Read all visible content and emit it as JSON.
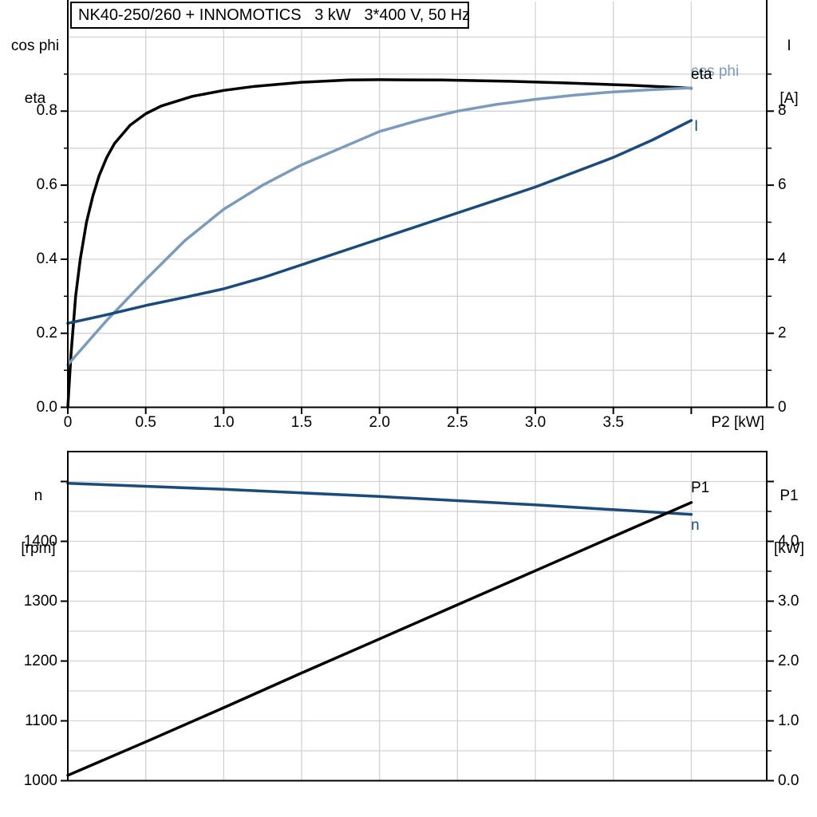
{
  "title": "NK40-250/260 + INNOMOTICS   3 kW   3*400 V, 50 Hz",
  "colors": {
    "black": "#000000",
    "light_blue": "#7a9bbd",
    "dark_blue": "#1a4b7c",
    "grid": "#d2d2d2",
    "axis": "#000000"
  },
  "top_chart": {
    "left_axis_title_line1": "cos phi",
    "left_axis_title_line2": "eta",
    "right_axis_title_line1": "I",
    "right_axis_title_line2": "[A]",
    "x_axis_label": "P2 [kW]",
    "left_ticks": [
      "0.0",
      "0.2",
      "0.4",
      "0.6",
      "0.8"
    ],
    "right_ticks": [
      "0",
      "2",
      "4",
      "6",
      "8"
    ],
    "x_ticks": [
      "0",
      "0.5",
      "1.0",
      "1.5",
      "2.0",
      "2.5",
      "3.0",
      "3.5"
    ],
    "curve_labels": {
      "cos_phi": "cos phi",
      "eta": "eta",
      "current": "I"
    }
  },
  "bottom_chart": {
    "left_axis_title_line1": "n",
    "left_axis_title_line2": "[rpm]",
    "right_axis_title_line1": "P1",
    "right_axis_title_line2": "[kW]",
    "left_ticks": [
      "1000",
      "1100",
      "1200",
      "1300",
      "1400"
    ],
    "right_ticks": [
      "0.0",
      "1.0",
      "2.0",
      "3.0",
      "4.0"
    ],
    "curve_labels": {
      "p1": "P1",
      "n": "n"
    }
  },
  "chart_data": [
    {
      "type": "line",
      "title": "NK40-250/260 + INNOMOTICS   3 kW   3*400 V, 50 Hz",
      "xlabel": "P2 [kW]",
      "ylabel_left": "cos phi / eta",
      "ylabel_right": "I [A]",
      "xlim": [
        0,
        4.48
      ],
      "ylim_left": [
        0,
        1.1
      ],
      "ylim_right": [
        0,
        11
      ],
      "grid": true,
      "legend_position": "right-inline",
      "series": [
        {
          "name": "cos phi",
          "axis": "left",
          "color_key": "black",
          "x": [
            0,
            0.02,
            0.05,
            0.08,
            0.12,
            0.16,
            0.2,
            0.25,
            0.3,
            0.4,
            0.5,
            0.6,
            0.8,
            1.0,
            1.2,
            1.5,
            1.8,
            2.0,
            2.4,
            2.8,
            3.2,
            3.6,
            4.0
          ],
          "y": [
            0,
            0.14,
            0.3,
            0.4,
            0.5,
            0.57,
            0.625,
            0.675,
            0.713,
            0.762,
            0.793,
            0.814,
            0.84,
            0.856,
            0.867,
            0.878,
            0.884,
            0.885,
            0.884,
            0.881,
            0.876,
            0.87,
            0.862
          ]
        },
        {
          "name": "eta",
          "axis": "left",
          "color_key": "light_blue",
          "x": [
            0,
            0.25,
            0.5,
            0.75,
            1.0,
            1.25,
            1.5,
            1.75,
            2.0,
            2.25,
            2.5,
            2.75,
            3.0,
            3.25,
            3.5,
            3.75,
            4.0
          ],
          "y": [
            0.115,
            0.235,
            0.345,
            0.45,
            0.535,
            0.6,
            0.655,
            0.7,
            0.745,
            0.775,
            0.8,
            0.818,
            0.832,
            0.843,
            0.852,
            0.858,
            0.863
          ]
        },
        {
          "name": "I",
          "axis": "right",
          "color_key": "dark_blue",
          "x": [
            0,
            0.25,
            0.5,
            0.75,
            1.0,
            1.25,
            1.5,
            1.75,
            2.0,
            2.25,
            2.5,
            2.75,
            3.0,
            3.25,
            3.5,
            3.75,
            4.0
          ],
          "y": [
            2.27,
            2.5,
            2.75,
            2.97,
            3.2,
            3.5,
            3.85,
            4.2,
            4.55,
            4.9,
            5.25,
            5.6,
            5.95,
            6.35,
            6.75,
            7.22,
            7.75
          ]
        }
      ]
    },
    {
      "type": "line",
      "title": "",
      "xlabel": "",
      "ylabel_left": "n [rpm]",
      "ylabel_right": "P1 [kW]",
      "xlim": [
        0,
        4.48
      ],
      "ylim_left": [
        1000,
        1550
      ],
      "ylim_right": [
        0,
        5.5
      ],
      "grid": true,
      "legend_position": "right-inline",
      "series": [
        {
          "name": "n",
          "axis": "left",
          "color_key": "dark_blue",
          "x": [
            0,
            0.5,
            1.0,
            1.5,
            2.0,
            2.5,
            3.0,
            3.5,
            4.0
          ],
          "y": [
            1497,
            1492,
            1487,
            1481,
            1475,
            1468,
            1461,
            1453,
            1445
          ]
        },
        {
          "name": "P1",
          "axis": "right",
          "color_key": "black",
          "x": [
            0,
            0.5,
            1.0,
            1.5,
            2.0,
            2.5,
            3.0,
            3.5,
            4.0
          ],
          "y": [
            0.09,
            0.65,
            1.22,
            1.8,
            2.37,
            2.94,
            3.51,
            4.08,
            4.65
          ]
        }
      ]
    }
  ]
}
